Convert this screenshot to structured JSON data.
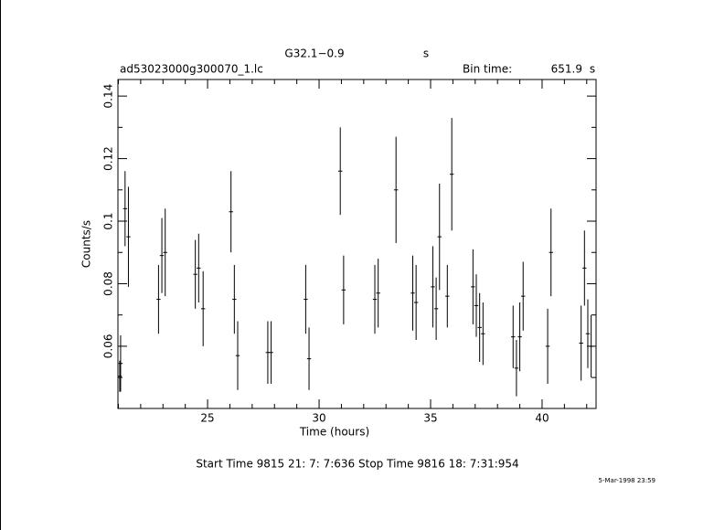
{
  "chart_data": {
    "type": "errorbar",
    "title": "G32.1−0.9",
    "title_unit": "s",
    "file": "ad53023000g300070_1.lc",
    "bin_time_label": "Bin time:",
    "bin_time": 651.9,
    "bin_time_unit": "s",
    "x_label": "Time (hours)",
    "y_label": "Counts/s",
    "footer": "Start Time  9815 21: 7: 7:636    Stop Time  9816 18: 7:31:954",
    "date_stamp": "5-Mar-1998 23:59",
    "xlim": [
      20.98,
      42.42
    ],
    "ylim": [
      0.0401,
      0.1453
    ],
    "xticks": [
      25,
      30,
      35,
      40
    ],
    "yticks": [
      0.06,
      0.08,
      0.1,
      0.12,
      0.14
    ],
    "xminorticks": [
      21,
      22,
      23,
      24,
      26,
      27,
      28,
      29,
      31,
      32,
      33,
      34,
      36,
      37,
      38,
      39,
      41,
      42
    ],
    "yminorticks": [
      0.05,
      0.07,
      0.09,
      0.11,
      0.13
    ],
    "color": "#000000",
    "xerr": 0.09,
    "x": [
      21.06,
      21.1,
      21.3,
      21.45,
      22.8,
      22.95,
      23.1,
      24.45,
      24.6,
      24.8,
      26.05,
      26.2,
      26.35,
      27.7,
      27.85,
      29.4,
      29.55,
      30.95,
      31.1,
      32.5,
      32.65,
      33.45,
      34.2,
      34.35,
      35.1,
      35.25,
      35.4,
      35.75,
      35.95,
      36.9,
      37.05,
      37.2,
      37.35,
      38.7,
      38.85,
      39.0,
      39.15,
      40.25,
      40.4,
      41.75,
      41.9,
      42.05,
      42.2
    ],
    "values": [
      0.0504,
      0.0545,
      0.104,
      0.095,
      0.075,
      0.089,
      0.09,
      0.083,
      0.085,
      0.072,
      0.103,
      0.075,
      0.057,
      0.058,
      0.058,
      0.075,
      0.056,
      0.116,
      0.078,
      0.075,
      0.077,
      0.11,
      0.077,
      0.074,
      0.079,
      0.072,
      0.095,
      0.076,
      0.115,
      0.079,
      0.073,
      0.066,
      0.064,
      0.063,
      0.053,
      0.063,
      0.076,
      0.06,
      0.09,
      0.061,
      0.085,
      0.064,
      0.06
    ],
    "errors": [
      0.005,
      0.009,
      0.012,
      0.016,
      0.011,
      0.012,
      0.014,
      0.011,
      0.011,
      0.012,
      0.013,
      0.011,
      0.011,
      0.01,
      0.01,
      0.011,
      0.01,
      0.014,
      0.011,
      0.011,
      0.011,
      0.017,
      0.012,
      0.012,
      0.013,
      0.01,
      0.017,
      0.01,
      0.018,
      0.012,
      0.01,
      0.011,
      0.01,
      0.01,
      0.009,
      0.011,
      0.011,
      0.012,
      0.014,
      0.012,
      0.012,
      0.011,
      0.01
    ]
  }
}
